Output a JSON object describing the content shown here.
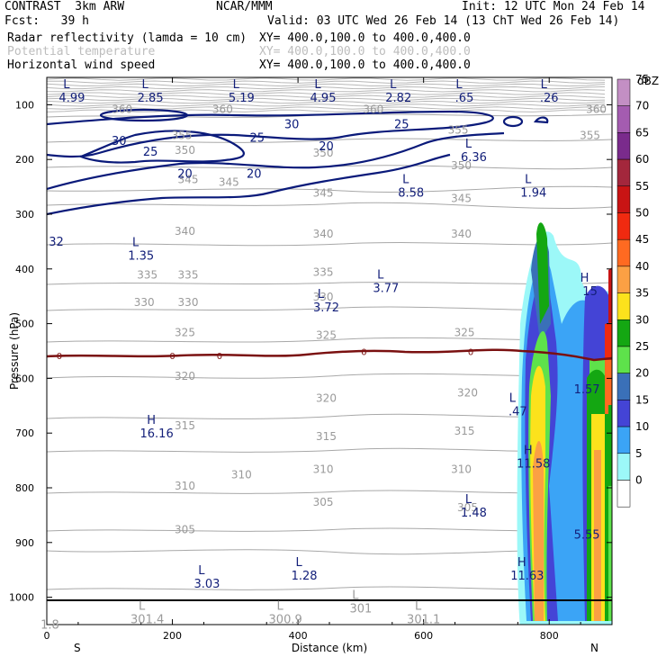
{
  "header": {
    "model": "CONTRAST  3km ARW",
    "org": "NCAR/MMM",
    "init": "Init: 12 UTC Mon 24 Feb 14",
    "fcst": "Fcst:   39 h",
    "valid": "Valid: 03 UTC Wed 26 Feb 14 (13 ChT Wed 26 Feb 14)",
    "fields": [
      {
        "name": "Radar reflectivity (lamda = 10 cm)",
        "xy": "XY= 400.0,100.0 to 400.0,400.0",
        "faint": false
      },
      {
        "name": "Potential temperature",
        "xy": "XY= 400.0,100.0 to 400.0,400.0",
        "faint": true
      },
      {
        "name": "Horizontal wind speed",
        "xy": "XY= 400.0,100.0 to 400.0,400.0",
        "faint": false
      }
    ]
  },
  "chart_data": {
    "type": "cross-section",
    "xlabel": "Distance (km)",
    "ylabel": "Pressure (hPa)",
    "x_ticks": [
      0,
      200,
      400,
      600,
      800
    ],
    "xlim": [
      0,
      900
    ],
    "y_ticks": [
      100,
      200,
      300,
      400,
      500,
      600,
      700,
      800,
      900,
      1000
    ],
    "ylim": [
      50,
      1050
    ],
    "x_end_labels": {
      "left": "S",
      "right": "N"
    },
    "colorbar": {
      "unit": "dBZ",
      "levels": [
        75,
        70,
        65,
        60,
        55,
        50,
        45,
        40,
        35,
        30,
        25,
        20,
        15,
        10,
        5,
        0
      ],
      "colors": [
        "#c38fc4",
        "#a45cb0",
        "#7a2b8c",
        "#a3273c",
        "#c91414",
        "#f02a10",
        "#ff6a21",
        "#fba044",
        "#fce21c",
        "#14a712",
        "#5ee24b",
        "#3a70b8",
        "#4444d6",
        "#3ba4f6",
        "#9cf8f8",
        "#ffffff"
      ]
    },
    "theta_labels": [
      {
        "x": 120,
        "p": 115,
        "text": "360"
      },
      {
        "x": 280,
        "p": 115,
        "text": "360"
      },
      {
        "x": 520,
        "p": 115,
        "text": "360"
      },
      {
        "x": 875,
        "p": 115,
        "text": "360"
      },
      {
        "x": 215,
        "p": 163,
        "text": "355"
      },
      {
        "x": 655,
        "p": 153,
        "text": "355"
      },
      {
        "x": 865,
        "p": 163,
        "text": "355"
      },
      {
        "x": 220,
        "p": 190,
        "text": "350"
      },
      {
        "x": 440,
        "p": 195,
        "text": "350"
      },
      {
        "x": 660,
        "p": 218,
        "text": "350"
      },
      {
        "x": 225,
        "p": 243,
        "text": "345"
      },
      {
        "x": 290,
        "p": 248,
        "text": "345"
      },
      {
        "x": 440,
        "p": 268,
        "text": "345"
      },
      {
        "x": 660,
        "p": 278,
        "text": "345"
      },
      {
        "x": 220,
        "p": 338,
        "text": "340"
      },
      {
        "x": 440,
        "p": 343,
        "text": "340"
      },
      {
        "x": 660,
        "p": 343,
        "text": "340"
      },
      {
        "x": 160,
        "p": 418,
        "text": "335"
      },
      {
        "x": 225,
        "p": 418,
        "text": "335"
      },
      {
        "x": 440,
        "p": 413,
        "text": "335"
      },
      {
        "x": 155,
        "p": 468,
        "text": "330"
      },
      {
        "x": 225,
        "p": 468,
        "text": "330"
      },
      {
        "x": 440,
        "p": 458,
        "text": "330"
      },
      {
        "x": 220,
        "p": 523,
        "text": "325"
      },
      {
        "x": 445,
        "p": 528,
        "text": "325"
      },
      {
        "x": 665,
        "p": 523,
        "text": "325"
      },
      {
        "x": 220,
        "p": 603,
        "text": "320"
      },
      {
        "x": 445,
        "p": 643,
        "text": "320"
      },
      {
        "x": 670,
        "p": 633,
        "text": "320"
      },
      {
        "x": 220,
        "p": 693,
        "text": "315"
      },
      {
        "x": 445,
        "p": 713,
        "text": "315"
      },
      {
        "x": 665,
        "p": 703,
        "text": "315"
      },
      {
        "x": 310,
        "p": 783,
        "text": "310"
      },
      {
        "x": 440,
        "p": 773,
        "text": "310"
      },
      {
        "x": 660,
        "p": 773,
        "text": "310"
      },
      {
        "x": 220,
        "p": 803,
        "text": "310"
      },
      {
        "x": 220,
        "p": 883,
        "text": "305"
      },
      {
        "x": 440,
        "p": 833,
        "text": "305"
      },
      {
        "x": 670,
        "p": 843,
        "text": "305"
      }
    ],
    "wind_labels": [
      {
        "x": 115,
        "p": 173,
        "text": "30"
      },
      {
        "x": 390,
        "p": 143,
        "text": "30"
      },
      {
        "x": 565,
        "p": 143,
        "text": "25"
      },
      {
        "x": 335,
        "p": 168,
        "text": "25"
      },
      {
        "x": 165,
        "p": 193,
        "text": "25"
      },
      {
        "x": 445,
        "p": 183,
        "text": "20"
      },
      {
        "x": 220,
        "p": 233,
        "text": "20"
      },
      {
        "x": 330,
        "p": 233,
        "text": "20"
      }
    ],
    "zero_labels": [
      {
        "x": 20,
        "p": 558
      },
      {
        "x": 200,
        "p": 558
      },
      {
        "x": 275,
        "p": 558
      },
      {
        "x": 505,
        "p": 551
      },
      {
        "x": 675,
        "p": 551
      }
    ],
    "hl_marks": [
      {
        "x": 40,
        "p": 70,
        "letter": "L",
        "value": "4.99",
        "color": "navy"
      },
      {
        "x": 165,
        "p": 70,
        "letter": "L",
        "value": "2.85",
        "color": "navy"
      },
      {
        "x": 310,
        "p": 70,
        "letter": "L",
        "value": "5.19",
        "color": "navy"
      },
      {
        "x": 440,
        "p": 70,
        "letter": "L",
        "value": "4.95",
        "color": "navy"
      },
      {
        "x": 560,
        "p": 70,
        "letter": "L",
        "value": "2.82",
        "color": "navy"
      },
      {
        "x": 665,
        "p": 70,
        "letter": "L",
        "value": ".65",
        "color": "navy"
      },
      {
        "x": 800,
        "p": 70,
        "letter": "L",
        "value": ".26",
        "color": "navy"
      },
      {
        "x": 680,
        "p": 178,
        "letter": "L",
        "value": "6.36",
        "color": "navy"
      },
      {
        "x": 580,
        "p": 243,
        "letter": "L",
        "value": "8.58",
        "color": "navy"
      },
      {
        "x": 775,
        "p": 243,
        "letter": "L",
        "value": "1.94",
        "color": "navy"
      },
      {
        "x": 15,
        "p": 333,
        "letter": "",
        "value": "32",
        "color": "navy"
      },
      {
        "x": 150,
        "p": 358,
        "letter": "L",
        "value": "1.35",
        "color": "navy"
      },
      {
        "x": 540,
        "p": 418,
        "letter": "L",
        "value": "3.77",
        "color": "navy"
      },
      {
        "x": 445,
        "p": 453,
        "letter": "L",
        "value": "3.72",
        "color": "navy"
      },
      {
        "x": 865,
        "p": 423,
        "letter": "H",
        "value": "15",
        "color": "navy"
      },
      {
        "x": 860,
        "p": 603,
        "letter": "",
        "value": "1.57",
        "color": "navy"
      },
      {
        "x": 750,
        "p": 643,
        "letter": "L",
        "value": ".47",
        "color": "navy"
      },
      {
        "x": 175,
        "p": 683,
        "letter": "H",
        "value": "16.16",
        "color": "navy"
      },
      {
        "x": 775,
        "p": 738,
        "letter": "H",
        "value": "11.58",
        "color": "navy"
      },
      {
        "x": 680,
        "p": 828,
        "letter": "L",
        "value": "1.48",
        "color": "navy"
      },
      {
        "x": 860,
        "p": 868,
        "letter": "",
        "value": "5.55",
        "color": "navy"
      },
      {
        "x": 255,
        "p": 958,
        "letter": "L",
        "value": "3.03",
        "color": "navy"
      },
      {
        "x": 410,
        "p": 943,
        "letter": "L",
        "value": "1.28",
        "color": "navy"
      },
      {
        "x": 765,
        "p": 943,
        "letter": "H",
        "value": "11.63",
        "color": "navy"
      },
      {
        "x": 5,
        "p": 1033,
        "letter": "",
        "value": "1.8",
        "color": "gray"
      },
      {
        "x": 160,
        "p": 1023,
        "letter": "L",
        "value": "301.4",
        "color": "gray"
      },
      {
        "x": 380,
        "p": 1023,
        "letter": "L",
        "value": "300.9",
        "color": "gray"
      },
      {
        "x": 500,
        "p": 1003,
        "letter": "L",
        "value": "301",
        "color": "gray"
      },
      {
        "x": 600,
        "p": 1023,
        "letter": "L",
        "value": "301.1",
        "color": "gray"
      }
    ]
  }
}
